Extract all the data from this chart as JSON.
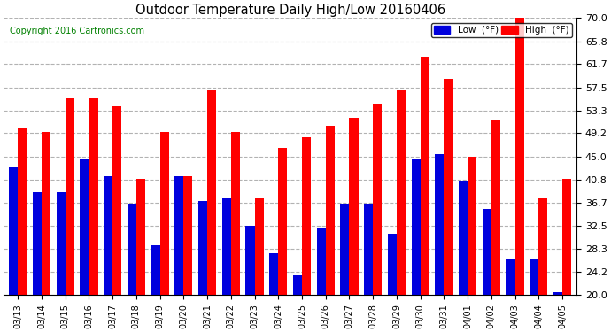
{
  "title": "Outdoor Temperature Daily High/Low 20160406",
  "copyright": "Copyright 2016 Cartronics.com",
  "legend_low": "Low  (°F)",
  "legend_high": "High  (°F)",
  "background_color": "#ffffff",
  "plot_background": "#ffffff",
  "grid_color": "#aaaaaa",
  "low_color": "#0000dd",
  "high_color": "#ff0000",
  "ylim": [
    20.0,
    70.0
  ],
  "ybase": 20.0,
  "yticks": [
    20.0,
    24.2,
    28.3,
    32.5,
    36.7,
    40.8,
    45.0,
    49.2,
    53.3,
    57.5,
    61.7,
    65.8,
    70.0
  ],
  "dates": [
    "03/13",
    "03/14",
    "03/15",
    "03/16",
    "03/17",
    "03/18",
    "03/19",
    "03/20",
    "03/21",
    "03/22",
    "03/23",
    "03/24",
    "03/25",
    "03/26",
    "03/27",
    "03/28",
    "03/29",
    "03/30",
    "03/31",
    "04/01",
    "04/02",
    "04/03",
    "04/04",
    "04/05"
  ],
  "highs": [
    50.0,
    49.5,
    55.5,
    55.5,
    54.0,
    41.0,
    49.5,
    41.5,
    57.0,
    49.5,
    37.5,
    46.5,
    48.5,
    50.5,
    52.0,
    54.5,
    57.0,
    63.0,
    59.0,
    45.0,
    51.5,
    70.0,
    37.5,
    41.0
  ],
  "lows": [
    43.0,
    38.5,
    38.5,
    44.5,
    41.5,
    36.5,
    29.0,
    41.5,
    37.0,
    37.5,
    32.5,
    27.5,
    23.5,
    32.0,
    36.5,
    36.5,
    31.0,
    44.5,
    45.5,
    40.5,
    35.5,
    26.5,
    26.5,
    20.5
  ]
}
